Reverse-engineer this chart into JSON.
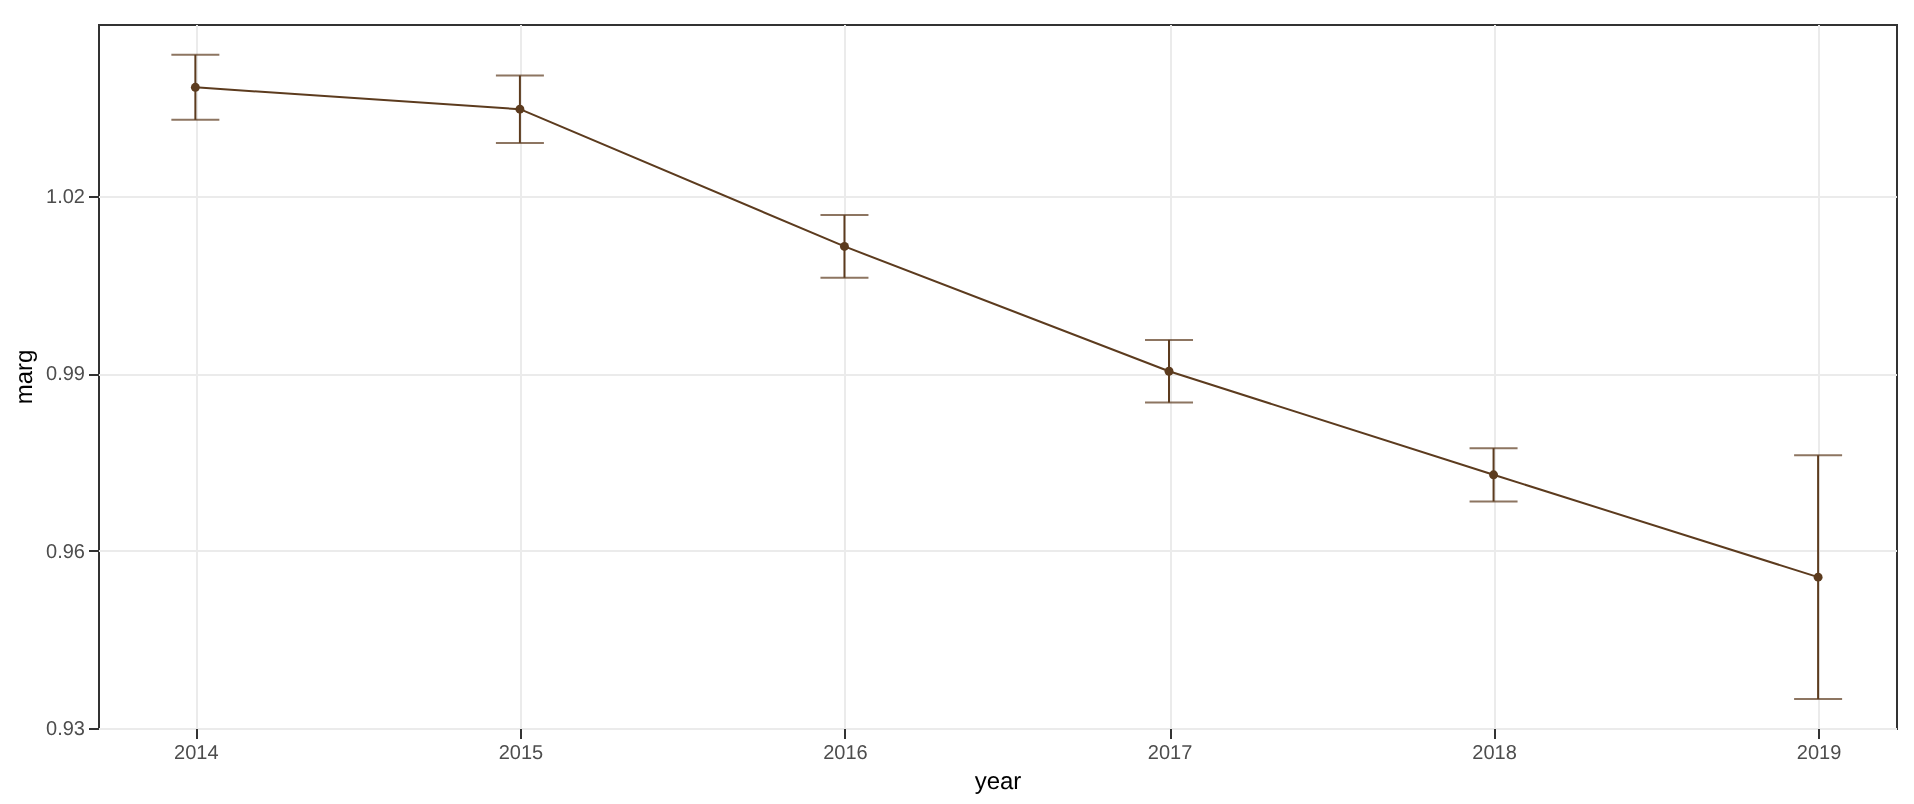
{
  "chart_data": {
    "type": "line",
    "xlabel": "year",
    "ylabel": "marg",
    "x": [
      2014,
      2015,
      2016,
      2017,
      2018,
      2019
    ],
    "series": [
      {
        "color": "#5c3b1e",
        "values": [
          1.0383,
          1.0346,
          1.0114,
          0.9903,
          0.9728,
          0.9555
        ],
        "errors": [
          0.0055,
          0.0057,
          0.0053,
          0.0053,
          0.0045,
          0.0206
        ]
      }
    ],
    "xlim": [
      2013.7,
      2019.24
    ],
    "xticks": [
      2014,
      2015,
      2016,
      2017,
      2018,
      2019
    ],
    "ylim": [
      0.93,
      1.049
    ],
    "yticks": [
      0.93,
      0.96,
      0.99,
      1.02
    ],
    "grid": true,
    "marker": "circle",
    "line_style": "solid"
  }
}
